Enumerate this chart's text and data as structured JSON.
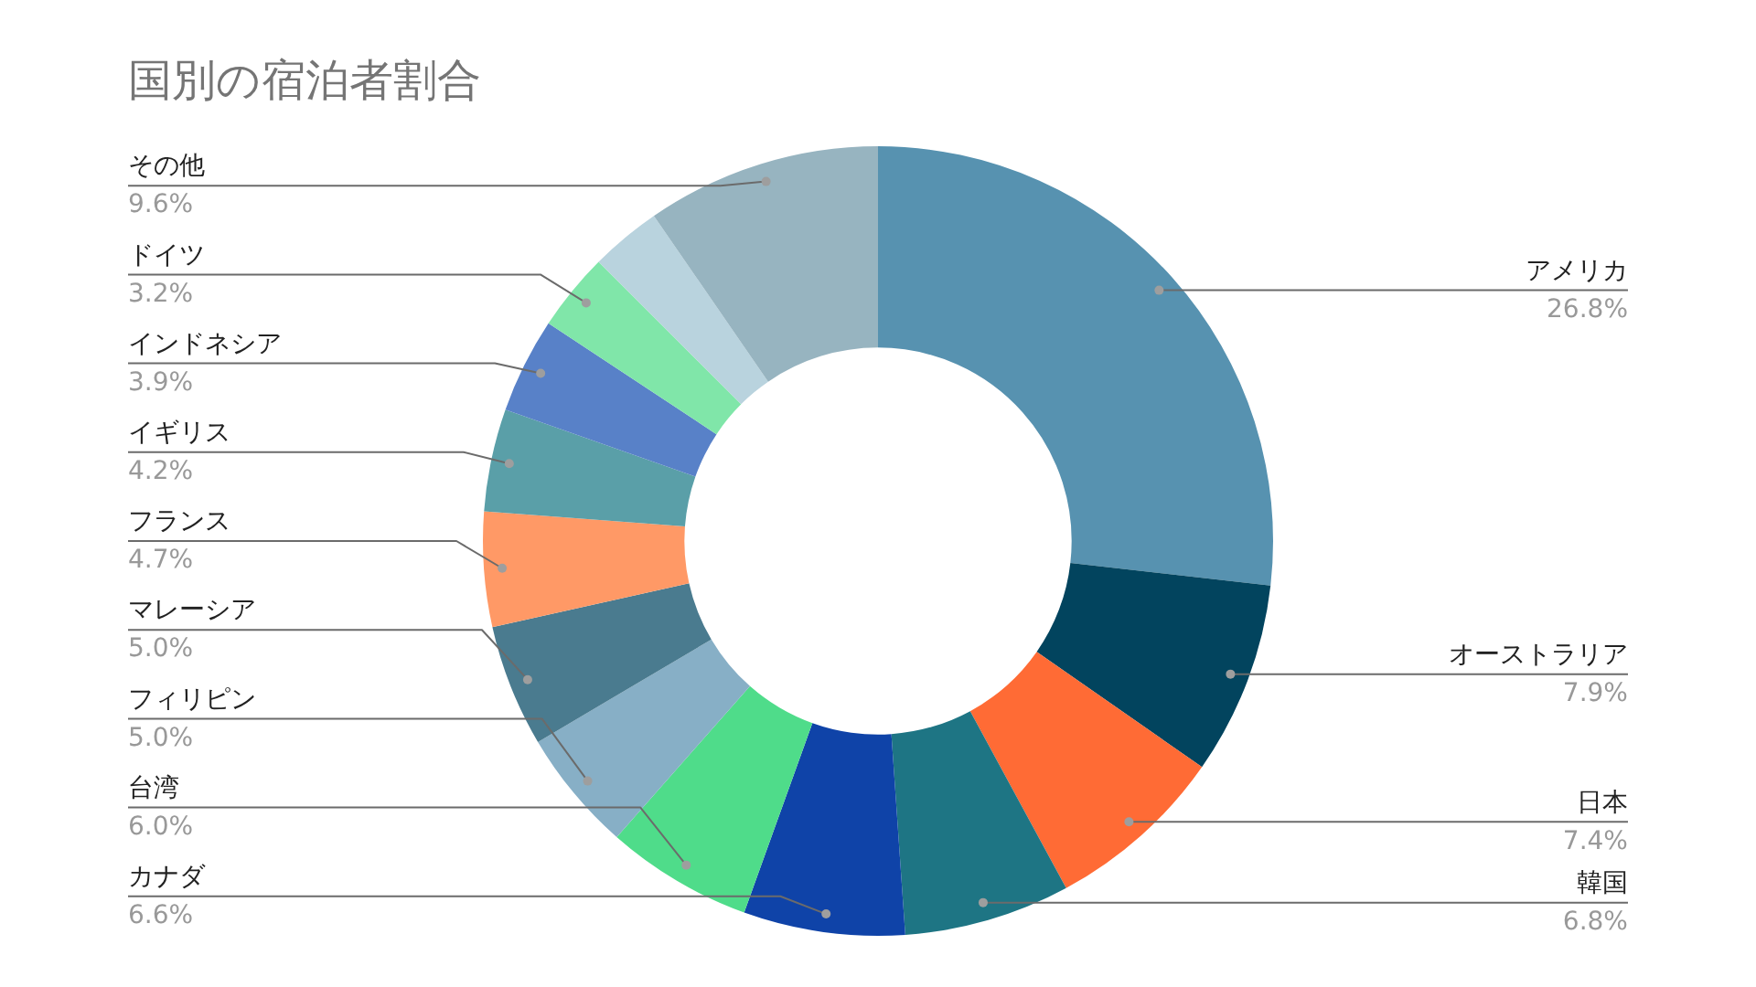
{
  "chart_data": {
    "type": "donut",
    "title": "国別の宿泊者割合",
    "categories": [
      "アメリカ",
      "オーストラリア",
      "日本",
      "韓国",
      "カナダ",
      "台湾",
      "フィリピン",
      "マレーシア",
      "フランス",
      "イギリス",
      "インドネシア",
      "ドイツ",
      null,
      "その他"
    ],
    "values": [
      26.8,
      7.9,
      7.4,
      6.8,
      6.6,
      6.0,
      5.0,
      5.0,
      4.7,
      4.2,
      3.9,
      3.2,
      2.9,
      9.6
    ],
    "value_labels": [
      "26.8%",
      "7.9%",
      "7.4%",
      "6.8%",
      "6.6%",
      "6.0%",
      "5.0%",
      "5.0%",
      "4.7%",
      "4.2%",
      "3.9%",
      "3.2%",
      null,
      "9.6%"
    ],
    "colors": [
      "#5792b0",
      "#02445e",
      "#ff6b35",
      "#1e7584",
      "#0f43a8",
      "#4fdc8a",
      "#87afc6",
      "#4a7b8f",
      "#ff9966",
      "#5a9fa8",
      "#5881c8",
      "#80e6a9",
      "#b9d3de",
      "#97b4c0"
    ]
  }
}
